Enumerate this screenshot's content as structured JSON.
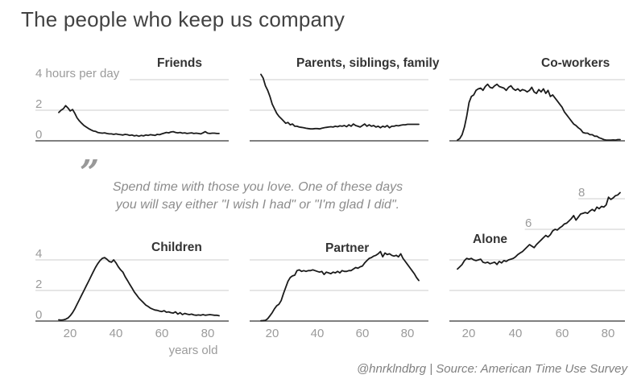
{
  "page": {
    "title": "The people who keep us company",
    "attribution": "@hnrklndbrg | Source: American Time Use Survey"
  },
  "quote": {
    "mark": "”",
    "line1": "Spend time with those you love. One of these days",
    "line2": "you will say either \"I wish I had\" or \"I'm glad I did\"."
  },
  "axes": {
    "y_unit_label": "4 hours per day",
    "row1_y_labels": [
      "2",
      "0"
    ],
    "row2_y_labels": [
      "4",
      "2",
      "0"
    ],
    "alone_y_labels": [
      "6",
      "8"
    ],
    "x_ticks": [
      "20",
      "40",
      "60",
      "80"
    ],
    "x_axis_label": "years old"
  },
  "colors": {
    "background": "#ffffff",
    "data_line": "#1b1b1b",
    "gridline": "#cccccc",
    "axis_baseline": "#555555",
    "muted_label": "#9b9b9b",
    "page_title": "#424242",
    "chart_title": "#333333",
    "quote_text": "#8c8c8c",
    "attribution_text": "#808080"
  },
  "chart_data": {
    "type": "line",
    "layout": "small multiples, 2 rows x 3 cols, shared age axis",
    "title": "The people who keep us company",
    "x_label": "years old",
    "y_label": "hours per day",
    "x_range": [
      15,
      85
    ],
    "x_ticks": [
      20,
      40,
      60,
      80
    ],
    "grid": "horizontal gridlines at 2-hour steps, dark zero baseline",
    "x": [
      15,
      16,
      17,
      18,
      19,
      20,
      21,
      22,
      23,
      24,
      25,
      26,
      27,
      28,
      29,
      30,
      31,
      32,
      33,
      34,
      35,
      36,
      37,
      38,
      39,
      40,
      41,
      42,
      43,
      44,
      45,
      46,
      47,
      48,
      49,
      50,
      51,
      52,
      53,
      54,
      55,
      56,
      57,
      58,
      59,
      60,
      61,
      62,
      63,
      64,
      65,
      66,
      67,
      68,
      69,
      70,
      71,
      72,
      73,
      74,
      75,
      76,
      77,
      78,
      79,
      80,
      81,
      82,
      83,
      84,
      85
    ],
    "series": [
      {
        "name": "Friends",
        "row": 1,
        "col": 1,
        "ylim": [
          0,
          4.7
        ],
        "y_gridlines": [
          {
            "value": 0
          },
          {
            "value": 2
          },
          {
            "value": 4,
            "from_age": 46
          }
        ],
        "values": [
          1.85,
          2.0,
          2.1,
          2.3,
          2.15,
          1.95,
          2.05,
          1.8,
          1.5,
          1.3,
          1.15,
          1.0,
          0.9,
          0.8,
          0.72,
          0.65,
          0.62,
          0.55,
          0.52,
          0.5,
          0.52,
          0.48,
          0.45,
          0.45,
          0.42,
          0.45,
          0.42,
          0.4,
          0.38,
          0.42,
          0.4,
          0.35,
          0.38,
          0.32,
          0.35,
          0.3,
          0.35,
          0.32,
          0.38,
          0.35,
          0.4,
          0.38,
          0.35,
          0.42,
          0.4,
          0.45,
          0.5,
          0.55,
          0.52,
          0.58,
          0.6,
          0.55,
          0.52,
          0.55,
          0.5,
          0.52,
          0.48,
          0.5,
          0.52,
          0.48,
          0.5,
          0.48,
          0.45,
          0.52,
          0.6,
          0.5,
          0.48,
          0.5,
          0.5,
          0.48,
          0.48
        ]
      },
      {
        "name": "Parents, siblings, family",
        "row": 1,
        "col": 2,
        "ylim": [
          0,
          4.7
        ],
        "y_gridlines": [
          {
            "value": 0
          },
          {
            "value": 2
          },
          {
            "value": 4
          }
        ],
        "values": [
          4.35,
          4.1,
          3.6,
          3.3,
          2.9,
          2.4,
          2.1,
          1.8,
          1.6,
          1.45,
          1.3,
          1.15,
          1.2,
          1.05,
          1.1,
          0.95,
          0.95,
          0.9,
          0.88,
          0.85,
          0.82,
          0.8,
          0.78,
          0.78,
          0.8,
          0.8,
          0.78,
          0.82,
          0.85,
          0.88,
          0.9,
          0.92,
          0.9,
          0.95,
          0.92,
          0.98,
          0.95,
          1.0,
          0.92,
          1.05,
          0.95,
          1.1,
          1.0,
          0.95,
          0.9,
          1.0,
          1.1,
          0.95,
          1.05,
          0.95,
          1.0,
          0.9,
          0.95,
          0.85,
          0.95,
          0.9,
          1.0,
          0.85,
          0.95,
          0.95,
          1.0,
          0.98,
          1.02,
          1.05,
          1.05,
          1.08,
          1.08,
          1.08,
          1.08,
          1.08,
          1.08
        ]
      },
      {
        "name": "Co-workers",
        "row": 1,
        "col": 3,
        "ylim": [
          0,
          4.7
        ],
        "y_gridlines": [
          {
            "value": 0
          },
          {
            "value": 2
          },
          {
            "value": 4
          }
        ],
        "values": [
          0.05,
          0.15,
          0.4,
          0.9,
          1.6,
          2.5,
          2.9,
          3.0,
          3.3,
          3.4,
          3.45,
          3.3,
          3.55,
          3.7,
          3.5,
          3.45,
          3.6,
          3.7,
          3.55,
          3.5,
          3.45,
          3.3,
          3.5,
          3.6,
          3.4,
          3.3,
          3.4,
          3.25,
          3.35,
          3.3,
          3.2,
          3.3,
          3.5,
          3.2,
          3.1,
          3.35,
          3.2,
          3.4,
          3.1,
          3.3,
          2.9,
          3.0,
          2.8,
          2.6,
          2.4,
          2.2,
          1.9,
          1.7,
          1.5,
          1.3,
          1.1,
          1.0,
          0.85,
          0.75,
          0.55,
          0.5,
          0.5,
          0.4,
          0.4,
          0.3,
          0.3,
          0.2,
          0.15,
          0.08,
          0.05,
          0.05,
          0.05,
          0.06,
          0.05,
          0.08,
          0.08
        ]
      },
      {
        "name": "Children",
        "row": 2,
        "col": 1,
        "ylim": [
          0,
          4.7
        ],
        "y_gridlines": [
          {
            "value": 0
          },
          {
            "value": 2
          },
          {
            "value": 4
          }
        ],
        "values": [
          0.08,
          0.06,
          0.08,
          0.12,
          0.2,
          0.35,
          0.55,
          0.8,
          1.1,
          1.4,
          1.7,
          2.0,
          2.3,
          2.6,
          2.9,
          3.2,
          3.5,
          3.75,
          3.95,
          4.1,
          4.15,
          4.05,
          3.9,
          3.85,
          4.0,
          3.8,
          3.55,
          3.35,
          3.2,
          2.9,
          2.65,
          2.4,
          2.15,
          1.9,
          1.7,
          1.5,
          1.35,
          1.2,
          1.05,
          0.95,
          0.85,
          0.78,
          0.72,
          0.7,
          0.65,
          0.62,
          0.68,
          0.58,
          0.6,
          0.55,
          0.52,
          0.6,
          0.45,
          0.55,
          0.42,
          0.5,
          0.45,
          0.42,
          0.45,
          0.4,
          0.38,
          0.4,
          0.38,
          0.42,
          0.38,
          0.4,
          0.42,
          0.4,
          0.38,
          0.38,
          0.35
        ]
      },
      {
        "name": "Partner",
        "row": 2,
        "col": 2,
        "ylim": [
          0,
          4.7
        ],
        "y_gridlines": [
          {
            "value": 0
          },
          {
            "value": 2
          },
          {
            "value": 4
          }
        ],
        "values": [
          0.02,
          0.03,
          0.05,
          0.15,
          0.35,
          0.55,
          0.8,
          1.0,
          1.1,
          1.35,
          1.8,
          2.2,
          2.6,
          2.85,
          2.95,
          3.0,
          3.3,
          3.35,
          3.25,
          3.3,
          3.25,
          3.3,
          3.3,
          3.35,
          3.3,
          3.25,
          3.2,
          3.25,
          3.05,
          3.2,
          3.15,
          3.1,
          3.2,
          3.15,
          3.25,
          3.15,
          3.3,
          3.25,
          3.25,
          3.3,
          3.3,
          3.4,
          3.5,
          3.45,
          3.55,
          3.6,
          3.8,
          3.95,
          4.1,
          4.15,
          4.25,
          4.3,
          4.4,
          4.55,
          4.2,
          4.45,
          4.35,
          4.4,
          4.3,
          4.25,
          4.3,
          4.2,
          4.4,
          4.1,
          3.9,
          3.7,
          3.5,
          3.3,
          3.1,
          2.85,
          2.65
        ]
      },
      {
        "name": "Alone",
        "row": 2,
        "col": 3,
        "ylim": [
          0,
          9
        ],
        "y_gridlines": [
          {
            "value": 0
          },
          {
            "value": 2
          },
          {
            "value": 4
          },
          {
            "value": 6,
            "from_age": 44
          },
          {
            "value": 8,
            "from_age": 67
          }
        ],
        "values": [
          3.4,
          3.55,
          3.7,
          3.95,
          4.1,
          4.05,
          4.1,
          4.0,
          3.95,
          4.0,
          4.05,
          3.85,
          3.8,
          3.85,
          3.75,
          3.8,
          3.85,
          3.7,
          3.9,
          3.8,
          3.95,
          3.9,
          4.0,
          4.05,
          4.1,
          4.2,
          4.35,
          4.45,
          4.55,
          4.7,
          4.85,
          5.0,
          4.9,
          4.8,
          5.0,
          5.15,
          5.3,
          5.45,
          5.6,
          5.5,
          5.65,
          5.9,
          6.0,
          5.95,
          6.1,
          6.2,
          6.35,
          6.4,
          6.55,
          6.7,
          6.9,
          6.6,
          6.8,
          7.0,
          7.05,
          7.1,
          7.05,
          7.2,
          7.3,
          7.2,
          7.45,
          7.35,
          7.5,
          7.45,
          7.6,
          8.1,
          7.95,
          8.05,
          8.2,
          8.25,
          8.4
        ]
      }
    ]
  }
}
